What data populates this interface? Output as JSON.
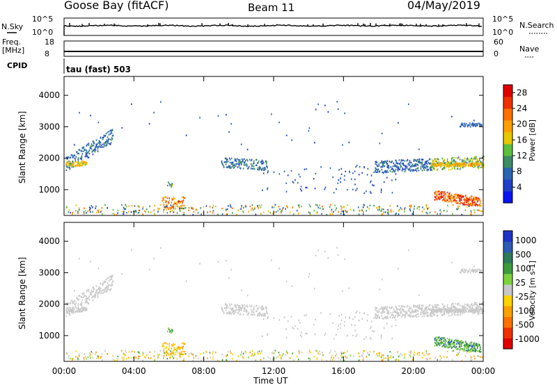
{
  "header": {
    "station": "Goose Bay (fitACF)",
    "beam": "Beam 11",
    "date": "04/May/2019"
  },
  "status_panels": {
    "nsky_label": "N.Sky",
    "nsky_ticks": [
      "10^5",
      "10^0"
    ],
    "nsearch_label": "N.Search",
    "nsearch_ticks": [
      "10^5",
      "10^0"
    ],
    "freq_label_1": "Freq.",
    "freq_label_2": "[MHz]",
    "freq_ticks": [
      "18",
      "8"
    ],
    "nave_label": "Nave",
    "nave_ticks": [
      "60",
      "0"
    ],
    "cpid_label": "CPID",
    "cpid_value": "tau (fast) 503"
  },
  "chart_data": [
    {
      "type": "heatmap",
      "name": "power",
      "ylabel": "Slant Range [km]",
      "ylim": [
        180,
        4600
      ],
      "yticks": [
        "1000",
        "2000",
        "3000",
        "4000"
      ],
      "colorbar": {
        "label": "Power [dB]",
        "ticks": [
          "4",
          "8",
          "12",
          "16",
          "20",
          "24",
          "28"
        ],
        "range": [
          0,
          30
        ],
        "colors": [
          "#0a14f0",
          "#2040c8",
          "#2a64b4",
          "#3c8c64",
          "#5cc03c",
          "#e8c800",
          "#ffa000",
          "#ff7000",
          "#f03000",
          "#e00000"
        ]
      },
      "regions": [
        {
          "t": [
            0.1,
            2.8
          ],
          "r": [
            1700,
            2200
          ],
          "note": "echo band rising",
          "r_end": [
            2700,
            3100
          ]
        },
        {
          "t": [
            0.1,
            1.2
          ],
          "r": [
            1750,
            2000
          ]
        },
        {
          "t": [
            9.0,
            11.5
          ],
          "r": [
            1700,
            2100
          ]
        },
        {
          "t": [
            18.0,
            24.0
          ],
          "r": [
            1550,
            2050
          ]
        },
        {
          "t": [
            21.2,
            23.8
          ],
          "r": [
            500,
            1000
          ]
        },
        {
          "t": [
            5.6,
            6.8
          ],
          "r": [
            300,
            1400
          ]
        },
        {
          "t": [
            0.0,
            24.0
          ],
          "r": [
            180,
            600
          ]
        }
      ]
    },
    {
      "type": "heatmap",
      "name": "velocity",
      "ylabel": "Slant Range [km]",
      "ylim": [
        180,
        4600
      ],
      "yticks": [
        "1000",
        "2000",
        "3000",
        "4000"
      ],
      "colorbar": {
        "label": "Velocity [m s-1]",
        "ticks": [
          "1000",
          "500",
          "100",
          "25",
          "-25",
          "-100",
          "-500",
          "-1000"
        ],
        "colors": [
          "#1e32c8",
          "#2c5ab4",
          "#2c7c5a",
          "#3c9c3c",
          "#7cd23c",
          "#c8c8c8",
          "#ffd200",
          "#ffa000",
          "#ff7000",
          "#f03000",
          "#e00000"
        ]
      }
    }
  ],
  "xaxis": {
    "label": "Time UT",
    "ticks": [
      "00:00",
      "04:00",
      "08:00",
      "12:00",
      "16:00",
      "20:00",
      "00:00"
    ],
    "range": [
      0,
      24
    ]
  }
}
